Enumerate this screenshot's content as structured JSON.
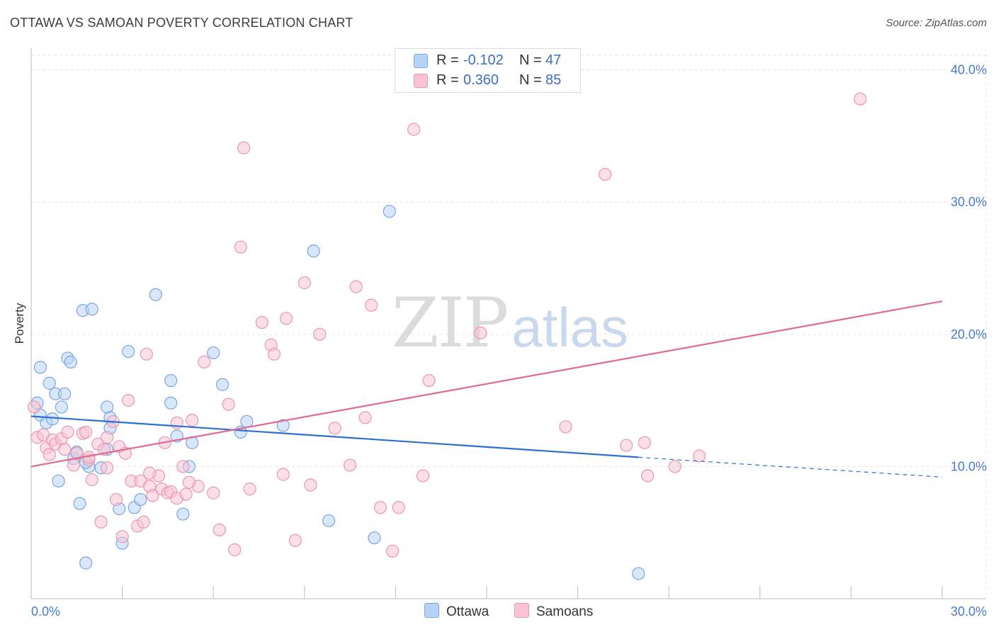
{
  "title": "OTTAWA VS SAMOAN POVERTY CORRELATION CHART",
  "source": "Source: ZipAtlas.com",
  "watermark": {
    "zip": "ZIP",
    "atlas": "atlas"
  },
  "colors": {
    "ottawa_fill": "#b8d3f5",
    "ottawa_stroke": "#7aa6de",
    "ottawa_line": "#2f6fd0",
    "samoan_fill": "#f8c4d4",
    "samoan_stroke": "#ea96b2",
    "samoan_line": "#e06a94",
    "axis_text": "#4a7bc8",
    "grid": "#e3e3e3"
  },
  "legend": {
    "rows": [
      {
        "r_label": "R =",
        "r_value": "-0.102",
        "n_label": "N =",
        "n_value": "47",
        "series": "Ottawa"
      },
      {
        "r_label": "R =",
        "r_value": "0.360",
        "n_label": "N =",
        "n_value": "85",
        "series": "Samoans"
      }
    ]
  },
  "bottom_legend": {
    "ottawa": "Ottawa",
    "samoans": "Samoans"
  },
  "chart_data": {
    "type": "scatter",
    "xlabel": "",
    "ylabel": "Poverty",
    "xlim": [
      0,
      30
    ],
    "ylim": [
      0,
      41
    ],
    "x_tick_labels": [
      "0.0%",
      "30.0%"
    ],
    "y_ticks": [
      10,
      20,
      30,
      40
    ],
    "y_tick_labels": [
      "10.0%",
      "20.0%",
      "30.0%",
      "40.0%"
    ],
    "grid": true,
    "series": [
      {
        "name": "Ottawa",
        "R": -0.102,
        "N": 47,
        "trend": {
          "x0": 0,
          "y0": 13.8,
          "x1": 20.0,
          "y1": 10.7,
          "dashed_to_x": 30.0,
          "dashed_to_y": 9.2
        },
        "points": [
          [
            0.2,
            14.8
          ],
          [
            0.3,
            13.9
          ],
          [
            0.3,
            17.5
          ],
          [
            0.5,
            13.3
          ],
          [
            0.6,
            16.3
          ],
          [
            0.7,
            13.6
          ],
          [
            0.8,
            15.5
          ],
          [
            0.9,
            8.9
          ],
          [
            1.0,
            14.5
          ],
          [
            1.1,
            15.5
          ],
          [
            1.2,
            18.2
          ],
          [
            1.3,
            17.9
          ],
          [
            1.4,
            10.6
          ],
          [
            1.5,
            11.1
          ],
          [
            1.6,
            7.2
          ],
          [
            1.7,
            21.8
          ],
          [
            1.8,
            2.7
          ],
          [
            1.9,
            10.0
          ],
          [
            2.0,
            21.9
          ],
          [
            2.3,
            9.9
          ],
          [
            2.5,
            11.3
          ],
          [
            2.6,
            13.7
          ],
          [
            2.5,
            14.5
          ],
          [
            2.9,
            6.8
          ],
          [
            3.0,
            4.2
          ],
          [
            3.2,
            18.7
          ],
          [
            3.4,
            6.9
          ],
          [
            3.6,
            7.5
          ],
          [
            4.1,
            23.0
          ],
          [
            4.6,
            16.5
          ],
          [
            4.6,
            14.8
          ],
          [
            4.8,
            12.3
          ],
          [
            5.0,
            6.4
          ],
          [
            5.2,
            10.0
          ],
          [
            5.3,
            11.8
          ],
          [
            6.0,
            18.6
          ],
          [
            6.3,
            16.2
          ],
          [
            6.9,
            12.6
          ],
          [
            7.1,
            13.4
          ],
          [
            8.3,
            13.1
          ],
          [
            9.3,
            26.3
          ],
          [
            9.8,
            5.9
          ],
          [
            11.3,
            4.6
          ],
          [
            11.8,
            29.3
          ],
          [
            20.0,
            1.9
          ],
          [
            1.8,
            10.3
          ],
          [
            2.6,
            12.9
          ]
        ]
      },
      {
        "name": "Samoans",
        "R": 0.36,
        "N": 85,
        "trend": {
          "x0": 0,
          "y0": 10.0,
          "x1": 30.0,
          "y1": 22.5
        },
        "points": [
          [
            0.1,
            14.5
          ],
          [
            0.2,
            12.2
          ],
          [
            0.4,
            12.4
          ],
          [
            0.5,
            11.4
          ],
          [
            0.6,
            10.9
          ],
          [
            0.7,
            12.0
          ],
          [
            0.8,
            11.7
          ],
          [
            1.0,
            12.1
          ],
          [
            1.1,
            11.3
          ],
          [
            1.2,
            12.6
          ],
          [
            1.4,
            10.1
          ],
          [
            1.5,
            11.0
          ],
          [
            1.7,
            12.5
          ],
          [
            1.8,
            12.6
          ],
          [
            1.9,
            10.5
          ],
          [
            2.0,
            9.0
          ],
          [
            2.2,
            11.7
          ],
          [
            2.3,
            5.8
          ],
          [
            2.5,
            12.2
          ],
          [
            2.5,
            9.9
          ],
          [
            2.7,
            13.4
          ],
          [
            2.8,
            7.5
          ],
          [
            2.9,
            11.5
          ],
          [
            3.0,
            4.7
          ],
          [
            3.2,
            15.0
          ],
          [
            3.3,
            8.9
          ],
          [
            3.5,
            5.5
          ],
          [
            3.6,
            8.9
          ],
          [
            3.7,
            5.8
          ],
          [
            3.8,
            18.5
          ],
          [
            3.9,
            8.5
          ],
          [
            4.0,
            7.8
          ],
          [
            4.2,
            9.3
          ],
          [
            4.3,
            8.3
          ],
          [
            4.4,
            11.8
          ],
          [
            4.5,
            8.0
          ],
          [
            4.6,
            8.1
          ],
          [
            4.8,
            7.6
          ],
          [
            5.0,
            10.0
          ],
          [
            5.1,
            7.9
          ],
          [
            5.3,
            13.5
          ],
          [
            5.5,
            8.5
          ],
          [
            5.7,
            17.9
          ],
          [
            6.0,
            8.0
          ],
          [
            6.2,
            5.2
          ],
          [
            6.5,
            14.7
          ],
          [
            6.7,
            3.7
          ],
          [
            6.9,
            26.6
          ],
          [
            7.0,
            34.1
          ],
          [
            7.2,
            8.3
          ],
          [
            7.6,
            20.9
          ],
          [
            7.9,
            19.2
          ],
          [
            8.0,
            18.5
          ],
          [
            8.3,
            9.4
          ],
          [
            8.4,
            21.2
          ],
          [
            8.7,
            4.4
          ],
          [
            9.0,
            23.9
          ],
          [
            9.2,
            8.6
          ],
          [
            9.5,
            20.0
          ],
          [
            10.0,
            12.9
          ],
          [
            10.5,
            10.1
          ],
          [
            10.7,
            23.6
          ],
          [
            11.0,
            13.7
          ],
          [
            11.2,
            22.2
          ],
          [
            11.5,
            6.9
          ],
          [
            11.9,
            3.6
          ],
          [
            12.1,
            6.9
          ],
          [
            12.6,
            35.5
          ],
          [
            12.9,
            9.3
          ],
          [
            13.1,
            16.5
          ],
          [
            14.8,
            20.1
          ],
          [
            17.6,
            13.0
          ],
          [
            18.9,
            32.1
          ],
          [
            19.6,
            11.6
          ],
          [
            20.2,
            11.8
          ],
          [
            20.3,
            9.3
          ],
          [
            21.2,
            10.0
          ],
          [
            22.0,
            10.8
          ],
          [
            27.3,
            37.8
          ],
          [
            1.9,
            10.7
          ],
          [
            2.4,
            11.3
          ],
          [
            3.9,
            9.5
          ],
          [
            4.8,
            13.3
          ],
          [
            5.2,
            8.8
          ],
          [
            3.1,
            11.0
          ]
        ]
      }
    ]
  }
}
